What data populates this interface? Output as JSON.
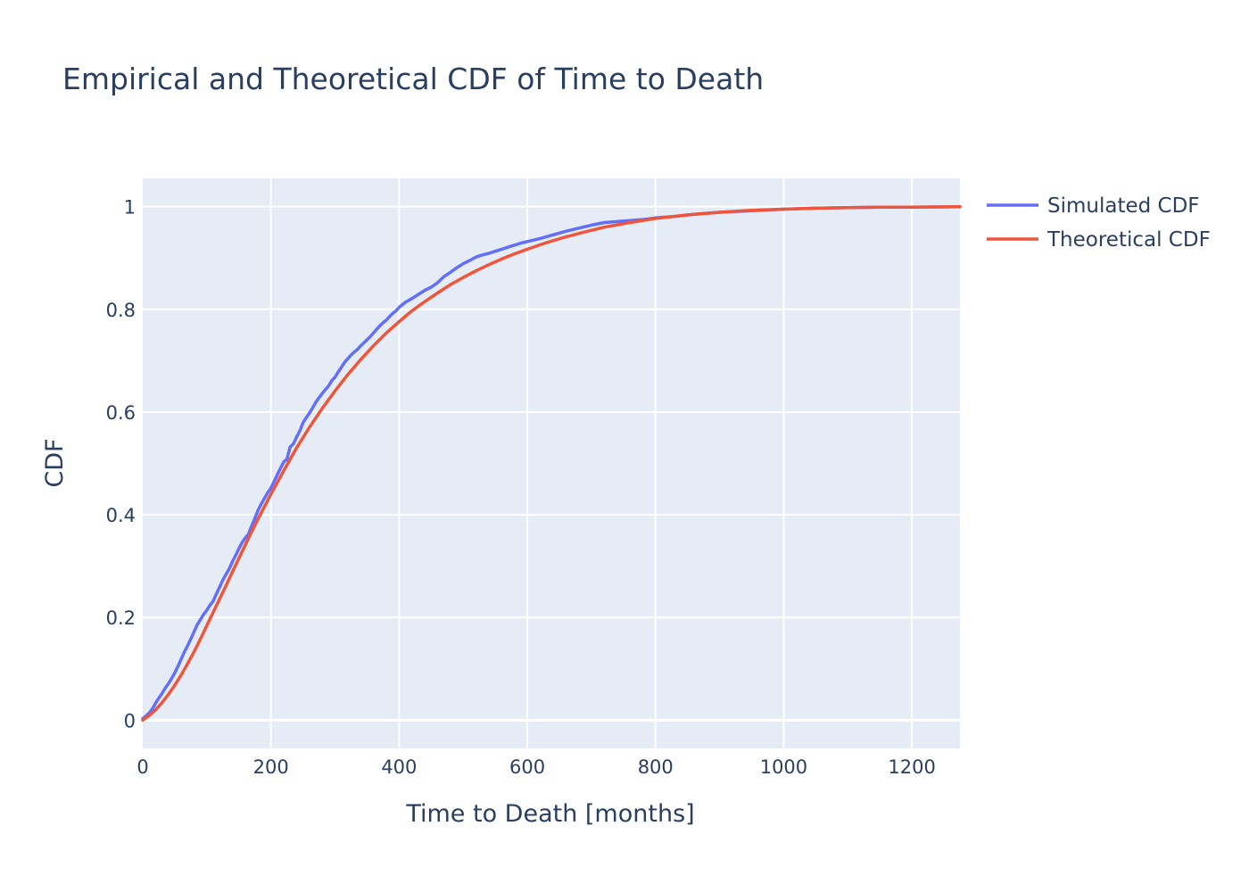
{
  "chart_data": {
    "type": "line",
    "title": "Empirical and Theoretical CDF of Time to Death",
    "xlabel": "Time to Death [months]",
    "ylabel": "CDF",
    "xlim": [
      0,
      1275
    ],
    "ylim": [
      -0.055,
      1.055
    ],
    "x_ticks": [
      0,
      200,
      400,
      600,
      800,
      1000,
      1200
    ],
    "x_tick_labels": [
      "0",
      "200",
      "400",
      "600",
      "800",
      "1000",
      "1200"
    ],
    "y_ticks": [
      0,
      0.2,
      0.4,
      0.6,
      0.8,
      1
    ],
    "y_tick_labels": [
      "0",
      "0.2",
      "0.4",
      "0.6",
      "0.8",
      "1"
    ],
    "grid": true,
    "legend_position": "top-right",
    "background_color": "#e5ecf6",
    "series": [
      {
        "name": "Simulated CDF",
        "color": "#636efa",
        "x": [
          0,
          5,
          10,
          15,
          20,
          25,
          30,
          35,
          40,
          45,
          50,
          55,
          60,
          65,
          70,
          75,
          80,
          85,
          90,
          95,
          100,
          105,
          110,
          115,
          120,
          125,
          130,
          135,
          140,
          145,
          150,
          155,
          160,
          165,
          170,
          175,
          180,
          185,
          190,
          195,
          200,
          205,
          210,
          215,
          220,
          225,
          230,
          235,
          240,
          245,
          250,
          255,
          260,
          265,
          270,
          275,
          280,
          285,
          290,
          295,
          300,
          305,
          310,
          315,
          320,
          325,
          330,
          335,
          340,
          345,
          350,
          355,
          360,
          365,
          370,
          375,
          380,
          385,
          390,
          395,
          400,
          410,
          420,
          430,
          440,
          450,
          460,
          470,
          480,
          490,
          500,
          510,
          520,
          530,
          540,
          550,
          560,
          570,
          580,
          590,
          600,
          620,
          640,
          660,
          680,
          700,
          720,
          740,
          760,
          780,
          800,
          830,
          860,
          900,
          950,
          1000,
          1050,
          1100,
          1150,
          1200,
          1275
        ],
        "y": [
          0.003,
          0.008,
          0.014,
          0.022,
          0.033,
          0.043,
          0.052,
          0.062,
          0.071,
          0.081,
          0.092,
          0.105,
          0.119,
          0.133,
          0.145,
          0.158,
          0.172,
          0.186,
          0.196,
          0.206,
          0.214,
          0.224,
          0.232,
          0.246,
          0.259,
          0.273,
          0.284,
          0.295,
          0.309,
          0.321,
          0.334,
          0.346,
          0.355,
          0.362,
          0.378,
          0.393,
          0.409,
          0.421,
          0.432,
          0.443,
          0.452,
          0.465,
          0.478,
          0.491,
          0.503,
          0.508,
          0.532,
          0.538,
          0.551,
          0.563,
          0.579,
          0.589,
          0.598,
          0.608,
          0.619,
          0.628,
          0.636,
          0.644,
          0.651,
          0.661,
          0.668,
          0.678,
          0.687,
          0.697,
          0.704,
          0.711,
          0.717,
          0.722,
          0.729,
          0.735,
          0.741,
          0.747,
          0.754,
          0.761,
          0.768,
          0.774,
          0.779,
          0.786,
          0.792,
          0.797,
          0.804,
          0.814,
          0.821,
          0.829,
          0.837,
          0.843,
          0.852,
          0.864,
          0.872,
          0.881,
          0.889,
          0.895,
          0.902,
          0.906,
          0.909,
          0.913,
          0.917,
          0.921,
          0.925,
          0.929,
          0.932,
          0.938,
          0.945,
          0.952,
          0.958,
          0.964,
          0.969,
          0.971,
          0.973,
          0.975,
          0.978,
          0.981,
          0.985,
          0.989,
          0.992,
          0.995,
          0.997,
          0.998,
          0.999,
          0.999,
          1.0
        ]
      },
      {
        "name": "Theoretical CDF",
        "color": "#ef553b",
        "x": [
          0,
          10,
          20,
          30,
          40,
          50,
          60,
          70,
          80,
          90,
          100,
          110,
          120,
          130,
          140,
          150,
          160,
          170,
          180,
          190,
          200,
          220,
          240,
          260,
          280,
          300,
          320,
          340,
          360,
          380,
          400,
          420,
          440,
          460,
          480,
          500,
          520,
          540,
          560,
          580,
          600,
          630,
          660,
          690,
          720,
          760,
          800,
          850,
          900,
          950,
          1000,
          1050,
          1100,
          1150,
          1200,
          1275
        ],
        "y": [
          0.0,
          0.009,
          0.02,
          0.034,
          0.05,
          0.068,
          0.088,
          0.11,
          0.133,
          0.158,
          0.184,
          0.21,
          0.236,
          0.262,
          0.289,
          0.315,
          0.341,
          0.367,
          0.392,
          0.416,
          0.44,
          0.486,
          0.53,
          0.57,
          0.607,
          0.641,
          0.673,
          0.702,
          0.729,
          0.754,
          0.776,
          0.797,
          0.815,
          0.832,
          0.848,
          0.862,
          0.875,
          0.887,
          0.898,
          0.908,
          0.917,
          0.93,
          0.941,
          0.951,
          0.96,
          0.969,
          0.977,
          0.984,
          0.989,
          0.993,
          0.995,
          0.997,
          0.998,
          0.999,
          0.999,
          1.0
        ]
      }
    ]
  }
}
